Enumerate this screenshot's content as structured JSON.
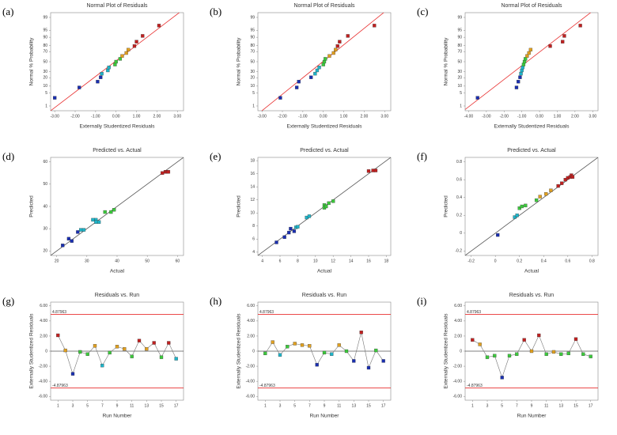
{
  "color_scale": [
    "#1a2fb0",
    "#1fb4c8",
    "#3cc83c",
    "#e0a020",
    "#c02020"
  ],
  "chart_data": [
    {
      "panel": "(a)",
      "type": "scatter",
      "yscale": "probit",
      "title": "Normal Plot of Residuals",
      "x_label": "Externally Studentized Residuals",
      "y_label": "Normal % Probability",
      "x": [
        -3.0,
        -1.8,
        -0.9,
        -0.75,
        -0.7,
        -0.4,
        -0.35,
        -0.05,
        0.0,
        0.2,
        0.3,
        0.5,
        0.6,
        0.9,
        1.0,
        1.3,
        2.1
      ],
      "y": [
        2.9,
        8.8,
        14.7,
        20.6,
        26.5,
        32.4,
        38.2,
        44.1,
        50,
        55.9,
        61.8,
        67.6,
        73.5,
        79.4,
        85.3,
        91.2,
        97.1
      ],
      "xlim": [
        -3.2,
        3.3
      ],
      "ylim": [
        0.5,
        99.5
      ],
      "xticks": [
        {
          "value": -3,
          "label": "-3.00"
        },
        {
          "value": -2,
          "label": "-2.00"
        },
        {
          "value": -1,
          "label": "-1.00"
        },
        {
          "value": 0,
          "label": "0.00"
        },
        {
          "value": 1,
          "label": "1.00"
        },
        {
          "value": 2,
          "label": "2.00"
        },
        {
          "value": 3,
          "label": "3.00"
        }
      ],
      "yticks": [
        1,
        5,
        10,
        20,
        30,
        50,
        70,
        80,
        90,
        95,
        99
      ],
      "fit_line": {
        "x": [
          -3.2,
          3.3
        ],
        "y": [
          0.5,
          99.7
        ],
        "color": "#e83030"
      }
    },
    {
      "panel": "(b)",
      "type": "scatter",
      "yscale": "probit",
      "title": "Normal Plot of Residuals",
      "x_label": "Externally Studentized Residuals",
      "y_label": "Normal % Probability",
      "x": [
        -2.1,
        -1.3,
        -1.2,
        -0.6,
        -0.4,
        -0.3,
        -0.2,
        0.0,
        0.05,
        0.1,
        0.3,
        0.5,
        0.6,
        0.7,
        0.8,
        1.2,
        2.5
      ],
      "y": [
        2.9,
        8.8,
        14.7,
        20.6,
        26.5,
        32.4,
        38.2,
        44.1,
        50,
        55.9,
        61.8,
        67.6,
        73.5,
        79.4,
        85.3,
        91.2,
        97.1
      ],
      "xlim": [
        -3.2,
        3.3
      ],
      "ylim": [
        0.5,
        99.5
      ],
      "xticks": [
        {
          "value": -3,
          "label": "-3.00"
        },
        {
          "value": -2,
          "label": "-2.00"
        },
        {
          "value": -1,
          "label": "-1.00"
        },
        {
          "value": 0,
          "label": "0.00"
        },
        {
          "value": 1,
          "label": "1.00"
        },
        {
          "value": 2,
          "label": "2.00"
        },
        {
          "value": 3,
          "label": "3.00"
        }
      ],
      "yticks": [
        1,
        5,
        10,
        20,
        30,
        50,
        70,
        80,
        90,
        95,
        99
      ],
      "fit_line": {
        "x": [
          -3.2,
          3.3
        ],
        "y": [
          0.3,
          99.8
        ],
        "color": "#e83030"
      }
    },
    {
      "panel": "(c)",
      "type": "scatter",
      "yscale": "probit",
      "title": "Normal Plot of Residuals",
      "x_label": "Externally Studentized Residuals",
      "y_label": "Normal % Probability",
      "x": [
        -3.5,
        -1.3,
        -1.2,
        -1.1,
        -1.05,
        -1.0,
        -0.95,
        -0.9,
        -0.85,
        -0.8,
        -0.7,
        -0.6,
        -0.5,
        0.6,
        1.3,
        1.4,
        2.3
      ],
      "y": [
        2.9,
        8.8,
        14.7,
        20.6,
        26.5,
        32.4,
        38.2,
        44.1,
        50,
        55.9,
        61.8,
        67.6,
        73.5,
        79.4,
        85.3,
        91.2,
        97.1
      ],
      "xlim": [
        -4.2,
        3.3
      ],
      "ylim": [
        0.5,
        99.5
      ],
      "xticks": [
        {
          "value": -4,
          "label": "-4.00"
        },
        {
          "value": -3,
          "label": "-3.00"
        },
        {
          "value": -2,
          "label": "-2.00"
        },
        {
          "value": -1,
          "label": "-1.00"
        },
        {
          "value": 0,
          "label": "0.00"
        },
        {
          "value": 1,
          "label": "1.00"
        },
        {
          "value": 2,
          "label": "2.00"
        },
        {
          "value": 3,
          "label": "3.00"
        }
      ],
      "yticks": [
        1,
        5,
        10,
        20,
        30,
        50,
        70,
        80,
        90,
        95,
        99
      ],
      "fit_line": {
        "x": [
          -4.2,
          3.3
        ],
        "y": [
          0.6,
          99.8
        ],
        "color": "#e83030"
      }
    },
    {
      "panel": "(d)",
      "type": "scatter",
      "title": "Predicted vs. Actual",
      "x_label": "Actual",
      "y_label": "Predicted",
      "x": [
        22,
        24,
        25,
        27,
        28,
        29,
        32,
        33,
        33,
        34,
        36,
        38,
        39,
        55,
        56,
        56.5,
        57
      ],
      "y": [
        22.5,
        25.5,
        24.5,
        28.5,
        29.5,
        29.5,
        34,
        34,
        33,
        33,
        37.5,
        37.5,
        38.5,
        55,
        55.5,
        55.5,
        55.5
      ],
      "xlim": [
        18,
        62
      ],
      "ylim": [
        18,
        62
      ],
      "xticks": [
        20,
        30,
        40,
        50,
        60
      ],
      "yticks": [
        20,
        30,
        40,
        50,
        60
      ],
      "fit_line": {
        "x": [
          18,
          62
        ],
        "y": [
          18,
          62
        ],
        "color": "#555555"
      }
    },
    {
      "panel": "(e)",
      "type": "scatter",
      "title": "Predicted vs. Actual",
      "x_label": "Actual",
      "y_label": "Predicted",
      "x": [
        5.6,
        6.5,
        7,
        7.2,
        7.6,
        7.8,
        8,
        9,
        9.3,
        11,
        11,
        11.2,
        11.5,
        12,
        16,
        16.5,
        16.8
      ],
      "y": [
        5.5,
        6.3,
        7,
        7.6,
        7.2,
        7.8,
        7.9,
        9.3,
        9.5,
        11.2,
        10.8,
        11,
        11.5,
        11.8,
        16.4,
        16.5,
        16.5
      ],
      "xlim": [
        3.5,
        18.5
      ],
      "ylim": [
        3.5,
        18.5
      ],
      "xticks": [
        4,
        6,
        8,
        10,
        12,
        14,
        16,
        18
      ],
      "yticks": [
        4,
        6,
        8,
        10,
        12,
        14,
        16,
        18
      ],
      "fit_line": {
        "x": [
          3.5,
          18.5
        ],
        "y": [
          3.5,
          18.5
        ],
        "color": "#555555"
      }
    },
    {
      "panel": "(f)",
      "type": "scatter",
      "title": "Predicted vs. Actual",
      "x_label": "Actual",
      "y_label": "Predicted",
      "x": [
        0.02,
        0.16,
        0.18,
        0.2,
        0.22,
        0.25,
        0.34,
        0.37,
        0.42,
        0.46,
        0.52,
        0.55,
        0.58,
        0.6,
        0.62,
        0.63,
        0.64
      ],
      "y": [
        -0.02,
        0.18,
        0.2,
        0.28,
        0.3,
        0.31,
        0.37,
        0.41,
        0.44,
        0.48,
        0.53,
        0.56,
        0.6,
        0.62,
        0.63,
        0.65,
        0.63
      ],
      "xlim": [
        -0.25,
        0.85
      ],
      "ylim": [
        -0.25,
        0.85
      ],
      "xticks": [
        -0.2,
        0,
        0.2,
        0.4,
        0.6,
        0.8
      ],
      "yticks": [
        -0.2,
        0,
        0.2,
        0.4,
        0.6,
        0.8
      ],
      "fit_line": {
        "x": [
          -0.25,
          0.85
        ],
        "y": [
          -0.25,
          0.85
        ],
        "color": "#555555"
      }
    },
    {
      "panel": "(g)",
      "type": "line",
      "title": "Residuals vs. Run",
      "x_label": "Run Number",
      "y_label": "Externally Studentized Residuals",
      "x": [
        1,
        2,
        3,
        4,
        5,
        6,
        7,
        8,
        9,
        10,
        11,
        12,
        13,
        14,
        15,
        16,
        17
      ],
      "y": [
        2.1,
        0.1,
        -3.0,
        -0.1,
        -0.4,
        0.7,
        -1.9,
        -0.2,
        0.6,
        0.3,
        -0.7,
        1.4,
        0.3,
        1.1,
        -0.8,
        1.1,
        -1.0
      ],
      "xlim": [
        0,
        18
      ],
      "ylim": [
        -6.5,
        6.5
      ],
      "xticks": [
        1,
        3,
        5,
        7,
        9,
        11,
        13,
        15,
        17
      ],
      "yticks": [
        {
          "value": -6,
          "label": "-6.00"
        },
        {
          "value": -4,
          "label": "-4.00"
        },
        {
          "value": -2,
          "label": "-2.00"
        },
        0,
        {
          "value": 2,
          "label": "2.00"
        },
        {
          "value": 4,
          "label": "4.00"
        },
        {
          "value": 6,
          "label": "6.00"
        }
      ],
      "limits": [
        {
          "value": 4.87963,
          "label": "4.87963"
        },
        {
          "value": -4.87963,
          "label": "-4.87963"
        }
      ],
      "limit_color": "#e83030"
    },
    {
      "panel": "(h)",
      "type": "line",
      "title": "Residuals vs. Run",
      "x_label": "Run Number",
      "y_label": "Externally Studentized Residuals",
      "x": [
        1,
        2,
        3,
        4,
        5,
        6,
        7,
        8,
        9,
        10,
        11,
        12,
        13,
        14,
        15,
        16,
        17
      ],
      "y": [
        -0.3,
        1.2,
        -0.5,
        0.6,
        1.0,
        0.8,
        0.7,
        -1.8,
        -0.2,
        -0.4,
        0.8,
        0.0,
        -1.3,
        2.5,
        -2.2,
        0.1,
        -1.3
      ],
      "xlim": [
        0,
        18
      ],
      "ylim": [
        -6.5,
        6.5
      ],
      "xticks": [
        1,
        3,
        5,
        7,
        9,
        11,
        13,
        15,
        17
      ],
      "yticks": [
        {
          "value": -6,
          "label": "-6.00"
        },
        {
          "value": -4,
          "label": "-4.00"
        },
        {
          "value": -2,
          "label": "-2.00"
        },
        0,
        {
          "value": 2,
          "label": "2.00"
        },
        {
          "value": 4,
          "label": "4.00"
        },
        {
          "value": 6,
          "label": "6.00"
        }
      ],
      "limits": [
        {
          "value": 4.87963,
          "label": "4.87963"
        },
        {
          "value": -4.87963,
          "label": "-4.87963"
        }
      ],
      "limit_color": "#e83030"
    },
    {
      "panel": "(i)",
      "type": "line",
      "title": "Residuals vs. Run",
      "x_label": "Run Number",
      "y_label": "Externally Studentized Residuals",
      "x": [
        1,
        2,
        3,
        4,
        5,
        6,
        7,
        8,
        9,
        10,
        11,
        12,
        13,
        14,
        15,
        16,
        17
      ],
      "y": [
        1.5,
        0.9,
        -0.8,
        -0.6,
        -3.5,
        -0.6,
        -0.4,
        1.5,
        0.0,
        2.1,
        -0.4,
        -0.1,
        -0.4,
        -0.3,
        1.6,
        -0.4,
        -0.7
      ],
      "xlim": [
        0,
        18
      ],
      "ylim": [
        -6.5,
        6.5
      ],
      "xticks": [
        1,
        3,
        5,
        7,
        9,
        11,
        13,
        15,
        17
      ],
      "yticks": [
        {
          "value": -6,
          "label": "-6.00"
        },
        {
          "value": -4,
          "label": "-4.00"
        },
        {
          "value": -2,
          "label": "-2.00"
        },
        0,
        {
          "value": 2,
          "label": "2.00"
        },
        {
          "value": 4,
          "label": "4.00"
        },
        {
          "value": 6,
          "label": "6.00"
        }
      ],
      "limits": [
        {
          "value": 4.87963,
          "label": "4.87963"
        },
        {
          "value": -4.87963,
          "label": "-4.87963"
        }
      ],
      "limit_color": "#e83030"
    }
  ]
}
